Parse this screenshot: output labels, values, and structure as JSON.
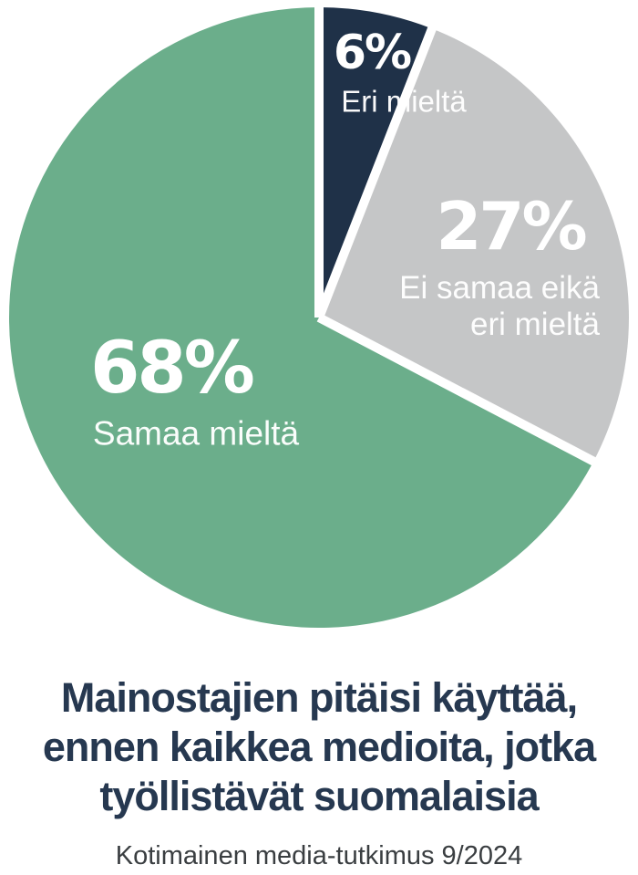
{
  "chart_data": {
    "type": "pie",
    "title": "Mainostajien pitäisi käyttää, ennen kaikkea medioita, jotka työllistävät suomalaisia",
    "title_lines": [
      "Mainostajien pitäisi käyttää,",
      "ennen kaikkea medioita, jotka",
      "työllistävät suomalaisia"
    ],
    "subtitle": "Kotimainen media-tutkimus 9/2024",
    "slices": [
      {
        "id": "eri-mielta",
        "label": "Eri mieltä",
        "value": 6,
        "pct_label": "6%",
        "color": "#1F3148"
      },
      {
        "id": "ei-samaa-eika-eri-mielta",
        "label": "Ei samaa eikä eri mieltä",
        "label_line1": "Ei samaa eikä",
        "label_line2": "eri mieltä",
        "value": 27,
        "pct_label": "27%",
        "color": "#C5C6C7"
      },
      {
        "id": "samaa-mielta",
        "label": "Samaa mieltä",
        "value": 68,
        "pct_label": "68%",
        "color": "#6BAE8B"
      }
    ],
    "start_angle_deg": 0,
    "direction": "clockwise",
    "legend": "none (labels drawn on slices)",
    "gap_color": "#FFFFFF",
    "background": "#FFFFFF",
    "slice_label_color": "#FFFFFF",
    "title_color": "#263850",
    "subtitle_color": "#3A3E41"
  }
}
